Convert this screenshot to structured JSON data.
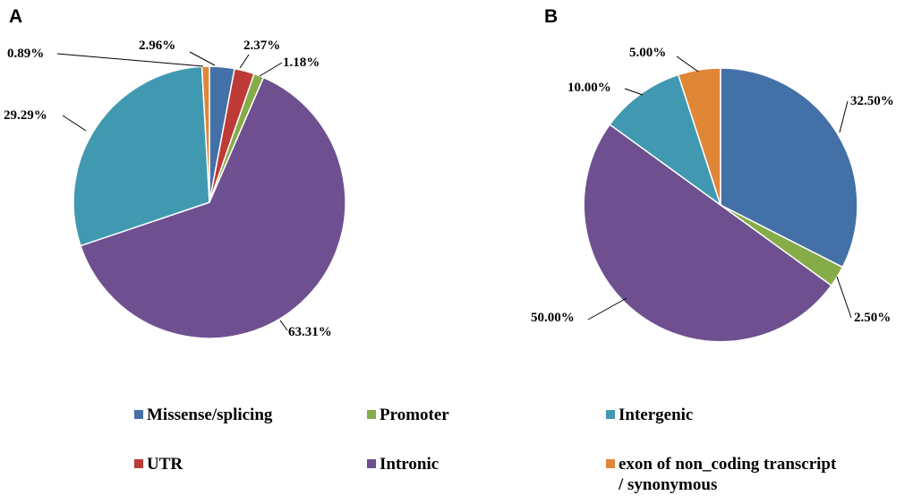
{
  "colors": {
    "Missense/splicing": "#4470a8",
    "Promoter": "#86ab49",
    "Intergenic": "#4099b1",
    "UTR": "#be3a36",
    "Intronic": "#6e5090",
    "exon of non_coding transcript / synonymous": "#e08637"
  },
  "chart_data": [
    {
      "type": "pie",
      "panel": "A",
      "slices": [
        {
          "category": "Missense/splicing",
          "value": 2.96,
          "label": "2.96%"
        },
        {
          "category": "UTR",
          "value": 2.37,
          "label": "2.37%"
        },
        {
          "category": "Promoter",
          "value": 1.18,
          "label": "1.18%"
        },
        {
          "category": "Intronic",
          "value": 63.31,
          "label": "63.31%"
        },
        {
          "category": "Intergenic",
          "value": 29.29,
          "label": "29.29%"
        },
        {
          "category": "exon of non_coding transcript / synonymous",
          "value": 0.89,
          "label": "0.89%"
        }
      ]
    },
    {
      "type": "pie",
      "panel": "B",
      "slices": [
        {
          "category": "Missense/splicing",
          "value": 32.5,
          "label": "32.50%"
        },
        {
          "category": "Promoter",
          "value": 2.5,
          "label": "2.50%"
        },
        {
          "category": "Intronic",
          "value": 50.0,
          "label": "50.00%"
        },
        {
          "category": "Intergenic",
          "value": 10.0,
          "label": "10.00%"
        },
        {
          "category": "exon of non_coding transcript / synonymous",
          "value": 5.0,
          "label": "5.00%"
        }
      ]
    }
  ],
  "legend": {
    "items": [
      {
        "category": "Missense/splicing",
        "label": "Missense/splicing"
      },
      {
        "category": "Promoter",
        "label": "Promoter"
      },
      {
        "category": "Intergenic",
        "label": "Intergenic"
      },
      {
        "category": "UTR",
        "label": "UTR"
      },
      {
        "category": "Intronic",
        "label": "Intronic"
      },
      {
        "category": "exon of non_coding transcript / synonymous",
        "label": "exon of non_coding transcript",
        "label_line2": "/ synonymous"
      }
    ]
  }
}
